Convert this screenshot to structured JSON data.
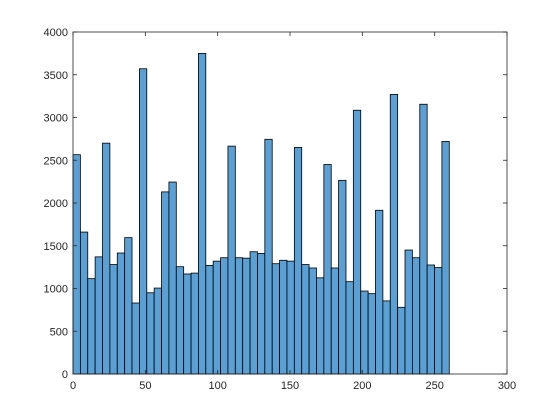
{
  "chart_data": {
    "type": "bar",
    "histogram": true,
    "bin_width": 5.1,
    "x_start": 0,
    "values": [
      2565,
      1660,
      1115,
      1370,
      2700,
      1280,
      1415,
      1595,
      830,
      3570,
      950,
      1005,
      2130,
      2245,
      1255,
      1170,
      1180,
      3750,
      1270,
      1320,
      1360,
      2665,
      1360,
      1355,
      1430,
      1410,
      2745,
      1290,
      1330,
      1320,
      2650,
      1280,
      1240,
      1125,
      2450,
      1240,
      2265,
      1080,
      3085,
      970,
      940,
      1915,
      855,
      3270,
      780,
      1450,
      1360,
      3155,
      1275,
      1245,
      2720
    ],
    "xlim": [
      0,
      300
    ],
    "ylim": [
      0,
      4000
    ],
    "xticks": [
      0,
      50,
      100,
      150,
      200,
      250,
      300
    ],
    "yticks": [
      0,
      500,
      1000,
      1500,
      2000,
      2500,
      3000,
      3500,
      4000
    ],
    "title": "",
    "xlabel": "",
    "ylabel": "",
    "grid": false,
    "bar_color": "#5aa0d5",
    "edge_color": "#000000"
  }
}
